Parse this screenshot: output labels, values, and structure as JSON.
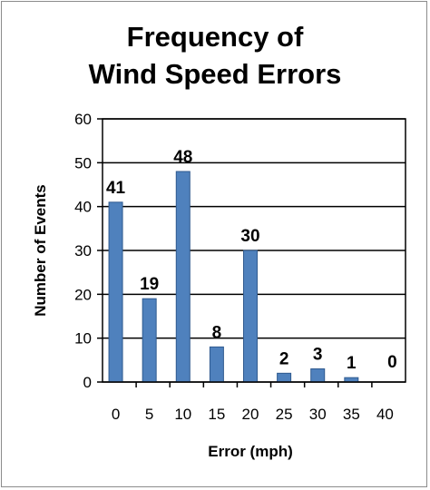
{
  "chart_data": {
    "type": "bar",
    "title_lines": [
      "Frequency of",
      "Wind Speed Errors"
    ],
    "xlabel": "Error (mph)",
    "ylabel": "Number  of  Events",
    "categories": [
      "0",
      "5",
      "10",
      "15",
      "20",
      "25",
      "30",
      "35",
      "40"
    ],
    "values": [
      41,
      19,
      48,
      8,
      30,
      2,
      3,
      1,
      0
    ],
    "data_labels": [
      "41",
      "19",
      "48",
      "8",
      "30",
      "2",
      "3",
      "1",
      "0"
    ],
    "ylim": [
      0,
      60
    ],
    "yticks": [
      "0",
      "10",
      "20",
      "30",
      "40",
      "50",
      "60"
    ],
    "grid": true,
    "bar_color": "#4f81bd",
    "bar_edge_color": "#2f5a8f"
  }
}
